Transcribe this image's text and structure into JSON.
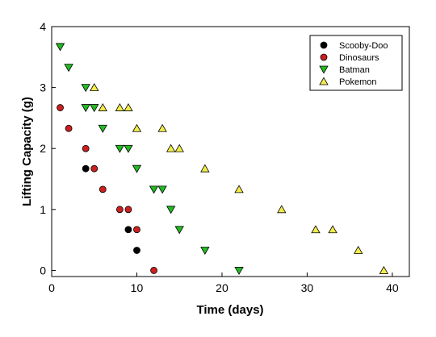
{
  "chart_data": {
    "type": "scatter",
    "xlabel": "Time (days)",
    "ylabel": "Lifting Capacity (g)",
    "xlim": [
      0,
      42
    ],
    "ylim": [
      -0.1,
      4
    ],
    "xticks": [
      0,
      10,
      20,
      30,
      40
    ],
    "yticks": [
      0,
      1,
      2,
      3,
      4
    ],
    "grid": false,
    "legend_position": "top-right",
    "series": [
      {
        "name": "Scooby-Doo",
        "marker": "circle",
        "color": "#000000",
        "points": [
          [
            4,
            1.67
          ],
          [
            9,
            0.67
          ],
          [
            10,
            0.33
          ]
        ]
      },
      {
        "name": "Dinosaurs",
        "marker": "circle",
        "color": "#cc1f1f",
        "points": [
          [
            1,
            2.67
          ],
          [
            2,
            2.33
          ],
          [
            4,
            2.0
          ],
          [
            5,
            1.67
          ],
          [
            6,
            1.33
          ],
          [
            8,
            1.0
          ],
          [
            9,
            1.0
          ],
          [
            10,
            0.67
          ],
          [
            12,
            0.0
          ]
        ]
      },
      {
        "name": "Batman",
        "marker": "triangle-down",
        "color": "#22bb22",
        "points": [
          [
            1,
            3.67
          ],
          [
            2,
            3.33
          ],
          [
            4,
            3.0
          ],
          [
            4,
            2.67
          ],
          [
            5,
            2.67
          ],
          [
            6,
            2.33
          ],
          [
            8,
            2.0
          ],
          [
            9,
            2.0
          ],
          [
            10,
            1.67
          ],
          [
            12,
            1.33
          ],
          [
            13,
            1.33
          ],
          [
            14,
            1.0
          ],
          [
            15,
            0.67
          ],
          [
            18,
            0.33
          ],
          [
            22,
            0.0
          ]
        ]
      },
      {
        "name": "Pokemon",
        "marker": "triangle-up",
        "color": "#f2ec4a",
        "points": [
          [
            5,
            3.0
          ],
          [
            6,
            2.67
          ],
          [
            8,
            2.67
          ],
          [
            9,
            2.67
          ],
          [
            10,
            2.33
          ],
          [
            13,
            2.33
          ],
          [
            14,
            2.0
          ],
          [
            15,
            2.0
          ],
          [
            18,
            1.67
          ],
          [
            22,
            1.33
          ],
          [
            27,
            1.0
          ],
          [
            31,
            0.67
          ],
          [
            33,
            0.67
          ],
          [
            36,
            0.33
          ],
          [
            39,
            0.0
          ]
        ]
      }
    ]
  }
}
